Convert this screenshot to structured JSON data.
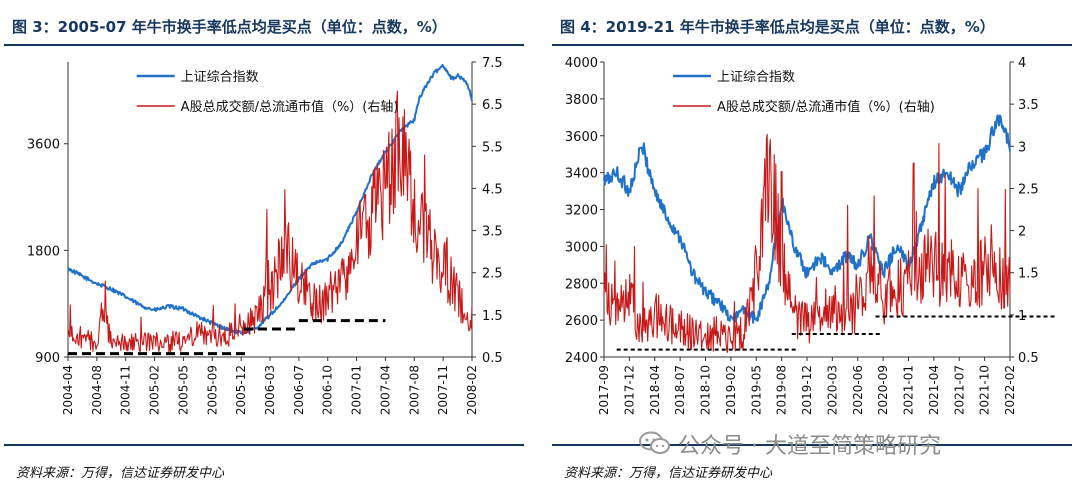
{
  "colors": {
    "index_line": "#1f72c8",
    "turnover_line": "#c81818",
    "dash": "#000000",
    "title": "#17375e"
  },
  "watermark": {
    "text": "公众号 · 大道至简策略研究"
  },
  "chart_data": [
    {
      "type": "line",
      "title": "图 3：2005-07 年牛市换手率低点均是买点（单位：点数，%）",
      "source": "资料来源：万得，信达证券研发中心",
      "legend": [
        "上证综合指数",
        "A股总成交额/总流通市值（%）(右轴)"
      ],
      "legend_position": "top-center",
      "x_ticks": [
        "2004-04",
        "2004-08",
        "2004-11",
        "2005-02",
        "2005-05",
        "2005-09",
        "2005-12",
        "2006-03",
        "2006-07",
        "2006-10",
        "2007-01",
        "2007-04",
        "2007-08",
        "2007-11",
        "2008-02"
      ],
      "y_left": {
        "ticks": [
          "900",
          "1800",
          "3600"
        ],
        "tick_values": [
          900,
          1800,
          3600
        ],
        "scale": "log",
        "range": [
          900,
          6124
        ]
      },
      "y_right": {
        "ticks": [
          "0.5",
          "1.5",
          "2.5",
          "3.5",
          "4.5",
          "5.5",
          "6.5",
          "7.5"
        ],
        "range": [
          0.5,
          7.5
        ]
      },
      "series": [
        {
          "name": "上证综合指数",
          "axis": "left",
          "anchors": [
            [
              0,
              1600
            ],
            [
              0.5,
              1520
            ],
            [
              1,
              1450
            ],
            [
              1.5,
              1400
            ],
            [
              2,
              1330
            ],
            [
              2.5,
              1260
            ],
            [
              3,
              1220
            ],
            [
              3.5,
              1250
            ],
            [
              4,
              1230
            ],
            [
              4.5,
              1170
            ],
            [
              5,
              1120
            ],
            [
              5.5,
              1080
            ],
            [
              6,
              1050
            ],
            [
              6.5,
              1080
            ],
            [
              7,
              1180
            ],
            [
              7.5,
              1300
            ],
            [
              8,
              1500
            ],
            [
              8.5,
              1650
            ],
            [
              9,
              1700
            ],
            [
              9.5,
              1900
            ],
            [
              10,
              2300
            ],
            [
              10.5,
              2900
            ],
            [
              11,
              3400
            ],
            [
              11.5,
              3900
            ],
            [
              12,
              4200
            ],
            [
              12.2,
              4900
            ],
            [
              12.5,
              5400
            ],
            [
              12.7,
              5700
            ],
            [
              13,
              6000
            ],
            [
              13.3,
              5500
            ],
            [
              13.5,
              5600
            ],
            [
              13.8,
              5400
            ],
            [
              14,
              4800
            ]
          ]
        },
        {
          "name": "A股总成交额/总流通市值（%）(右轴)",
          "axis": "right",
          "anchors": [
            [
              0,
              1.0
            ],
            [
              0.5,
              0.9
            ],
            [
              1,
              0.85
            ],
            [
              1.2,
              1.6
            ],
            [
              1.5,
              0.9
            ],
            [
              2,
              0.8
            ],
            [
              2.5,
              0.85
            ],
            [
              3,
              0.9
            ],
            [
              3.5,
              0.8
            ],
            [
              4,
              0.9
            ],
            [
              4.5,
              1.1
            ],
            [
              5,
              1.0
            ],
            [
              5.5,
              0.95
            ],
            [
              6,
              1.0
            ],
            [
              6.5,
              1.5
            ],
            [
              7,
              2.0
            ],
            [
              7.3,
              2.5
            ],
            [
              7.6,
              3.0
            ],
            [
              8,
              2.3
            ],
            [
              8.5,
              1.8
            ],
            [
              9,
              1.8
            ],
            [
              9.5,
              2.3
            ],
            [
              10,
              3.2
            ],
            [
              10.5,
              3.8
            ],
            [
              11,
              4.5
            ],
            [
              11.5,
              5.4
            ],
            [
              11.8,
              5.0
            ],
            [
              12,
              4.2
            ],
            [
              12.3,
              3.5
            ],
            [
              12.5,
              3.3
            ],
            [
              12.8,
              2.6
            ],
            [
              13,
              2.5
            ],
            [
              13.3,
              2.3
            ],
            [
              13.6,
              1.8
            ],
            [
              14,
              1.4
            ]
          ],
          "spikes": [
            [
              1.3,
              2.3
            ],
            [
              6.9,
              4.0
            ],
            [
              7.3,
              3.3
            ],
            [
              11.0,
              4.5
            ],
            [
              11.3,
              5.6
            ],
            [
              11.6,
              6.2
            ]
          ]
        }
      ],
      "dash_segments": [
        {
          "axis": "left",
          "x_from": 0.0,
          "x_to": 6.2,
          "y": 920
        },
        {
          "axis": "left",
          "x_from": 6.1,
          "x_to": 8.0,
          "y": 1080
        },
        {
          "axis": "left",
          "x_from": 8.0,
          "x_to": 11.0,
          "y": 1140
        }
      ]
    },
    {
      "type": "line",
      "title": "图 4：2019-21 年牛市换手率低点均是买点（单位：点数，%）",
      "source": "资料来源：万得，信达证券研发中心",
      "legend": [
        "上证综合指数",
        "A股总成交额/总流通市值（%）(右轴)"
      ],
      "legend_position": "top-center",
      "x_ticks": [
        "2017-09",
        "2017-12",
        "2018-04",
        "2018-07",
        "2018-10",
        "2019-02",
        "2019-05",
        "2019-08",
        "2019-12",
        "2020-03",
        "2020-06",
        "2020-09",
        "2021-01",
        "2021-04",
        "2021-07",
        "2021-10",
        "2022-02"
      ],
      "y_left": {
        "ticks": [
          "2400",
          "2600",
          "2800",
          "3000",
          "3200",
          "3400",
          "3600",
          "3800",
          "4000"
        ],
        "range": [
          2400,
          4000
        ]
      },
      "y_right": {
        "ticks": [
          "0.5",
          "1",
          "1.5",
          "2",
          "2.5",
          "3",
          "3.5",
          "4"
        ],
        "range": [
          0.5,
          4.0
        ]
      },
      "series": [
        {
          "name": "上证综合指数",
          "axis": "left",
          "anchors": [
            [
              0,
              3350
            ],
            [
              0.5,
              3400
            ],
            [
              1,
              3300
            ],
            [
              1.5,
              3550
            ],
            [
              2,
              3300
            ],
            [
              2.5,
              3150
            ],
            [
              3,
              3050
            ],
            [
              3.5,
              2850
            ],
            [
              4,
              2750
            ],
            [
              4.5,
              2700
            ],
            [
              5,
              2600
            ],
            [
              5.5,
              2650
            ],
            [
              6,
              2600
            ],
            [
              6.5,
              2800
            ],
            [
              7,
              3250
            ],
            [
              7.5,
              3000
            ],
            [
              8,
              2850
            ],
            [
              8.5,
              2950
            ],
            [
              9,
              2850
            ],
            [
              9.5,
              2950
            ],
            [
              10,
              2900
            ],
            [
              10.5,
              3050
            ],
            [
              11,
              2850
            ],
            [
              11.5,
              3000
            ],
            [
              12,
              2900
            ],
            [
              12.5,
              3100
            ],
            [
              13,
              3350
            ],
            [
              13.5,
              3400
            ],
            [
              14,
              3300
            ],
            [
              14.5,
              3450
            ],
            [
              15,
              3500
            ],
            [
              15.5,
              3700
            ],
            [
              16,
              3550
            ],
            [
              16.5,
              3450
            ],
            [
              17,
              3600
            ],
            [
              17.5,
              3500
            ],
            [
              18,
              3650
            ],
            [
              18.5,
              3550
            ],
            [
              19,
              3700
            ],
            [
              19.5,
              3550
            ],
            [
              20,
              3400
            ],
            [
              20.5,
              3550
            ],
            [
              21,
              3450
            ]
          ]
        },
        {
          "name": "A股总成交额/总流通市值（%）(右轴)",
          "axis": "right",
          "anchors": [
            [
              0,
              1.2
            ],
            [
              0.5,
              1.0
            ],
            [
              1,
              1.2
            ],
            [
              1.5,
              0.8
            ],
            [
              2,
              1.0
            ],
            [
              2.5,
              0.9
            ],
            [
              3,
              0.85
            ],
            [
              3.5,
              0.8
            ],
            [
              4,
              0.75
            ],
            [
              4.5,
              0.8
            ],
            [
              5,
              0.7
            ],
            [
              5.5,
              0.8
            ],
            [
              6,
              1.5
            ],
            [
              6.5,
              2.8
            ],
            [
              7,
              1.6
            ],
            [
              7.5,
              1.0
            ],
            [
              8,
              0.9
            ],
            [
              8.5,
              1.0
            ],
            [
              9,
              1.1
            ],
            [
              9.5,
              0.9
            ],
            [
              10,
              1.1
            ],
            [
              10.5,
              1.6
            ],
            [
              11,
              1.2
            ],
            [
              11.5,
              1.3
            ],
            [
              12,
              1.4
            ],
            [
              12.5,
              1.5
            ],
            [
              13,
              1.6
            ],
            [
              13.5,
              1.4
            ],
            [
              14,
              1.5
            ],
            [
              14.5,
              1.3
            ],
            [
              15,
              1.6
            ],
            [
              15.5,
              1.4
            ],
            [
              16,
              1.5
            ],
            [
              16.5,
              1.5
            ],
            [
              17,
              1.7
            ],
            [
              17.5,
              1.9
            ],
            [
              18,
              1.8
            ],
            [
              18.5,
              1.5
            ],
            [
              19,
              1.5
            ],
            [
              19.5,
              1.4
            ],
            [
              20,
              1.3
            ],
            [
              20.5,
              1.3
            ],
            [
              21,
              1.1
            ]
          ],
          "spikes": [
            [
              6.7,
              2.9
            ],
            [
              7.0,
              2.7
            ],
            [
              9.6,
              2.3
            ],
            [
              12.2,
              2.8
            ],
            [
              18.0,
              2.2
            ]
          ]
        }
      ],
      "dash_segments": [
        {
          "axis": "left",
          "x_from": 0.5,
          "x_to": 7.6,
          "y": 2440
        },
        {
          "axis": "left",
          "x_from": 7.4,
          "x_to": 10.9,
          "y": 2525
        },
        {
          "axis": "left",
          "x_from": 10.7,
          "x_to": 17.8,
          "y": 2620
        }
      ]
    }
  ]
}
